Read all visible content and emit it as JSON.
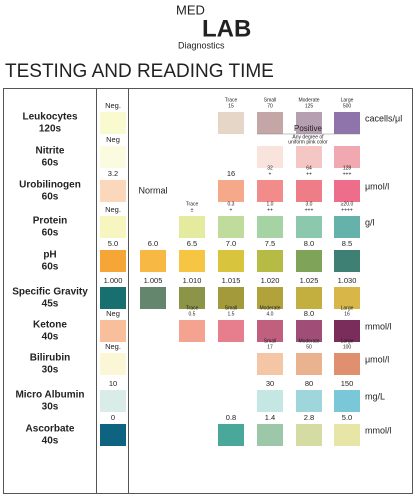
{
  "logo": {
    "top": "MED",
    "main": "LAB",
    "sub": "Diagnostics"
  },
  "title": "TESTING AND READING TIME",
  "rows": [
    {
      "name": "Leukocytes",
      "time": "120s",
      "unit": "cacells/μl",
      "cells": [
        {
          "labels": [
            "Neg."
          ],
          "color": "#fafad0"
        },
        null,
        null,
        {
          "labels": [
            "Trace",
            "15"
          ],
          "color": "#e6d6c8"
        },
        {
          "labels": [
            "Small",
            "70"
          ],
          "color": "#c4a6a6"
        },
        {
          "labels": [
            "Moderate",
            "125"
          ],
          "color": "#b79fb2"
        },
        {
          "labels": [
            "Large",
            "500"
          ],
          "color": "#8e74ab"
        }
      ]
    },
    {
      "name": "Nitrite",
      "time": "60s",
      "note": [
        "Positive",
        "Any degree of",
        "uniform pink color"
      ],
      "cells": [
        {
          "labels": [
            "Neg"
          ],
          "color": "#fbfbe0"
        },
        null,
        null,
        null,
        {
          "color": "#f8e4dc"
        },
        {
          "color": "#f4c7c4"
        },
        {
          "color": "#f1a8b1"
        }
      ]
    },
    {
      "name": "Urobilinogen",
      "time": "60s",
      "unit": "μmol/l",
      "cells": [
        {
          "labels": [
            "3.2"
          ],
          "color": "#fbd7bc"
        },
        {
          "labels": [
            "Normal"
          ]
        },
        null,
        {
          "labels": [
            "16"
          ],
          "color": "#f5a88a"
        },
        {
          "labels": [
            "32",
            "+"
          ],
          "color": "#f28c8a"
        },
        {
          "labels": [
            "64",
            "++"
          ],
          "color": "#ef7d88"
        },
        {
          "labels": [
            "128",
            "+++"
          ],
          "color": "#ee6d8b"
        }
      ]
    },
    {
      "name": "Protein",
      "time": "60s",
      "unit": "g/l",
      "cells": [
        {
          "labels": [
            "Neg."
          ],
          "color": "#f7f5c0"
        },
        null,
        {
          "labels": [
            "Trace",
            "±"
          ],
          "color": "#e4ea9e"
        },
        {
          "labels": [
            "0.3",
            "+"
          ],
          "color": "#bfdc9d"
        },
        {
          "labels": [
            "1.0",
            "++"
          ],
          "color": "#a6d3a4"
        },
        {
          "labels": [
            "3.0",
            "+++"
          ],
          "color": "#8cc8ae"
        },
        {
          "labels": [
            "≥20.0",
            "++++"
          ],
          "color": "#64b2a9"
        }
      ]
    },
    {
      "name": "pH",
      "time": "60s",
      "cells": [
        {
          "labels": [
            "5.0"
          ],
          "color": "#f5a636"
        },
        {
          "labels": [
            "6.0"
          ],
          "color": "#f7b844"
        },
        {
          "labels": [
            "6.5"
          ],
          "color": "#f7c544"
        },
        {
          "labels": [
            "7.0"
          ],
          "color": "#d9c43d"
        },
        {
          "labels": [
            "7.5"
          ],
          "color": "#b5bb45"
        },
        {
          "labels": [
            "8.0"
          ],
          "color": "#7fa359"
        },
        {
          "labels": [
            "8.5"
          ],
          "color": "#3e8073"
        }
      ]
    },
    {
      "name": "Specific Gravity",
      "time": "45s",
      "cells": [
        {
          "labels": [
            "1.000"
          ],
          "color": "#176f6f"
        },
        {
          "labels": [
            "1.005"
          ],
          "color": "#63866c"
        },
        {
          "labels": [
            "1.010"
          ],
          "color": "#8c9547"
        },
        {
          "labels": [
            "1.015"
          ],
          "color": "#a29a3b"
        },
        {
          "labels": [
            "1.020"
          ],
          "color": "#b1a23c"
        },
        {
          "labels": [
            "1.025"
          ],
          "color": "#c3af40"
        },
        {
          "labels": [
            "1.030"
          ],
          "color": "#d8b748"
        }
      ]
    },
    {
      "name": "Ketone",
      "time": "40s",
      "unit": "mmol/l",
      "cells": [
        {
          "labels": [
            "Neg"
          ],
          "color": "#f9be9b"
        },
        null,
        {
          "labels": [
            "Trace",
            "0.5"
          ],
          "color": "#f3a38f"
        },
        {
          "labels": [
            "Small",
            "1.5"
          ],
          "color": "#e67e8d"
        },
        {
          "labels": [
            "Moderate",
            "4.0"
          ],
          "color": "#c15f7f"
        },
        {
          "labels": [
            "8.0"
          ],
          "color": "#a04e78"
        },
        {
          "labels": [
            "Large",
            "16"
          ],
          "color": "#7a2c5a"
        }
      ]
    },
    {
      "name": "Bilirubin",
      "time": "30s",
      "unit": "μmol/l",
      "cells": [
        {
          "labels": [
            "Neg."
          ],
          "color": "#fbf7d6"
        },
        null,
        null,
        null,
        {
          "labels": [
            "Small",
            "17"
          ],
          "color": "#f5c6a6"
        },
        {
          "labels": [
            "Moderate",
            "50"
          ],
          "color": "#e9b38f"
        },
        {
          "labels": [
            "Large",
            "100"
          ],
          "color": "#e1906f"
        }
      ]
    },
    {
      "name": "Micro Albumin",
      "time": "30s",
      "unit": "mg/L",
      "cells": [
        {
          "labels": [
            "10"
          ],
          "color": "#daece8"
        },
        null,
        null,
        null,
        {
          "labels": [
            "30"
          ],
          "color": "#c5e7e4"
        },
        {
          "labels": [
            "80"
          ],
          "color": "#9fd6dc"
        },
        {
          "labels": [
            "150"
          ],
          "color": "#7ac7d8"
        }
      ]
    },
    {
      "name": "Ascorbate",
      "time": "40s",
      "unit": "mmol/l",
      "cells": [
        {
          "labels": [
            "0"
          ],
          "color": "#0e6380"
        },
        null,
        null,
        {
          "labels": [
            "0.8"
          ],
          "color": "#49a899"
        },
        {
          "labels": [
            "1.4"
          ],
          "color": "#9cc7a9"
        },
        {
          "labels": [
            "2.8"
          ],
          "color": "#d4dca4"
        },
        {
          "labels": [
            "5.0"
          ],
          "color": "#e7e6a6"
        }
      ]
    }
  ]
}
